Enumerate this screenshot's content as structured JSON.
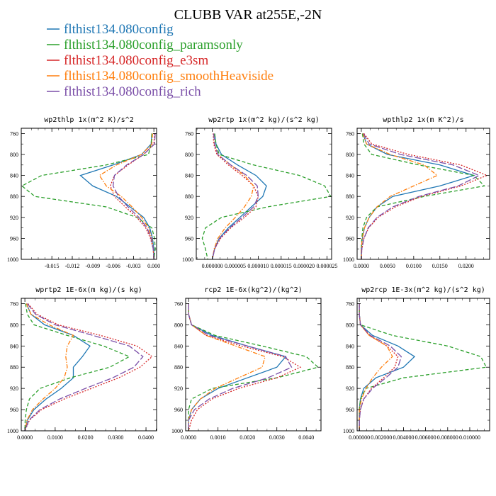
{
  "figure": {
    "title": "CLUBB VAR at255E,-2N",
    "legend": [
      {
        "label": "flthist134.080config",
        "color": "#1f77b4",
        "dash": "solid"
      },
      {
        "label": "flthist134.080config_paramsonly",
        "color": "#2ca02c",
        "dash": "dash"
      },
      {
        "label": "flthist134.080config_e3sm",
        "color": "#d62728",
        "dash": "dot"
      },
      {
        "label": "flthist134.080config_smoothHeaviside",
        "color": "#ff7f0e",
        "dash": "dashdot"
      },
      {
        "label": "flthist134.080config_rich",
        "color": "#7b4fa8",
        "dash": "longdash"
      }
    ]
  },
  "chart_data": [
    {
      "type": "line",
      "title": "wp2thlp  1x(m^2 K)/s^2",
      "y": [
        760,
        780,
        800,
        820,
        840,
        860,
        880,
        900,
        920,
        940,
        960,
        980,
        1000
      ],
      "ylim": [
        750,
        1000
      ],
      "yticks": [
        "760",
        "800",
        "840",
        "880",
        "920",
        "960",
        "1000"
      ],
      "xlim": [
        -0.0195,
        0.0004
      ],
      "xticks": [
        "-0.015",
        "-0.012",
        "-0.009",
        "-0.006",
        "-0.003",
        "0.000"
      ],
      "xtick_values": [
        -0.015,
        -0.012,
        -0.009,
        -0.006,
        -0.003,
        0.0
      ],
      "series": [
        {
          "values": [
            -0.0003,
            -0.0004,
            -0.0018,
            -0.006,
            -0.0108,
            -0.009,
            -0.0055,
            -0.0035,
            -0.0015,
            -0.0006,
            -0.0002,
            0.0,
            0.0
          ]
        },
        {
          "values": [
            -0.0003,
            -0.0004,
            -0.0008,
            -0.007,
            -0.0165,
            -0.0194,
            -0.0175,
            -0.007,
            -0.0025,
            -0.0003,
            0.0001,
            0.0002,
            0.0
          ]
        },
        {
          "values": [
            0.0001,
            0.0,
            -0.0015,
            -0.0038,
            -0.0058,
            -0.0064,
            -0.0058,
            -0.0042,
            -0.0025,
            -0.0012,
            -0.0005,
            -0.0001,
            0.0
          ]
        },
        {
          "values": [
            -0.0002,
            -0.0003,
            -0.0018,
            -0.0055,
            -0.008,
            -0.007,
            -0.0048,
            -0.0032,
            -0.0018,
            -0.0008,
            -0.0003,
            -0.0001,
            0.0
          ]
        },
        {
          "values": [
            0.0002,
            0.0001,
            -0.0015,
            -0.004,
            -0.0058,
            -0.006,
            -0.0052,
            -0.0038,
            -0.0022,
            -0.001,
            -0.0004,
            -0.0001,
            0.0
          ]
        }
      ]
    },
    {
      "type": "line",
      "title": "wp2rtp  1x(m^2 kg)/(s^2 kg)",
      "y": [
        760,
        780,
        800,
        820,
        840,
        860,
        880,
        900,
        920,
        940,
        960,
        980,
        1000
      ],
      "ylim": [
        750,
        1000
      ],
      "yticks": [
        "760",
        "800",
        "840",
        "880",
        "920",
        "960",
        "1000"
      ],
      "xlim": [
        -3.5e-06,
        2.6e-05
      ],
      "xticks": [
        "0.000000",
        "0.000005",
        "0.000010",
        "0.000015",
        "0.000020",
        "0.000025"
      ],
      "xtick_values": [
        0.0,
        5e-06,
        1e-05,
        1.5e-05,
        2e-05,
        2.5e-05
      ],
      "series": [
        {
          "values": [
            5e-07,
            8e-07,
            2e-06,
            5.5e-06,
            9.5e-06,
            1.18e-05,
            1.1e-05,
            8.5e-06,
            6e-06,
            3.5e-06,
            1.5e-06,
            5e-07,
            0.0
          ]
        },
        {
          "values": [
            5e-07,
            8e-07,
            1.5e-06,
            9e-06,
            1.9e-05,
            2.45e-05,
            2.58e-05,
            1.2e-05,
            2e-06,
            -1.5e-06,
            -2.2e-06,
            -1.5e-06,
            -1e-06
          ]
        },
        {
          "values": [
            2e-07,
            3e-07,
            1e-06,
            3.5e-06,
            6.5e-06,
            9e-06,
            1e-05,
            9.5e-06,
            7e-06,
            4e-06,
            1.8e-06,
            5e-07,
            0.0
          ]
        },
        {
          "values": [
            3e-07,
            5e-07,
            1.2e-06,
            4e-06,
            7e-06,
            9e-06,
            8.5e-06,
            7e-06,
            5e-06,
            2.8e-06,
            1.2e-06,
            4e-07,
            0.0
          ]
        },
        {
          "values": [
            3e-07,
            5e-07,
            1.2e-06,
            4e-06,
            7.5e-06,
            9.8e-06,
            1e-05,
            9e-06,
            6.5e-06,
            3.8e-06,
            1.6e-06,
            5e-07,
            0.0
          ]
        }
      ]
    },
    {
      "type": "line",
      "title": "wpthlp2  1x(m K^2)/s",
      "y": [
        760,
        780,
        800,
        820,
        840,
        860,
        880,
        900,
        920,
        940,
        960,
        980,
        1000
      ],
      "ylim": [
        750,
        1000
      ],
      "yticks": [
        "760",
        "800",
        "840",
        "880",
        "920",
        "960",
        "1000"
      ],
      "xlim": [
        -0.0008,
        0.0245
      ],
      "xticks": [
        "0.0000",
        "0.0050",
        "0.0100",
        "0.0150",
        "0.0200"
      ],
      "xtick_values": [
        0.0,
        0.005,
        0.01,
        0.015,
        0.02
      ],
      "series": [
        {
          "values": [
            0.0003,
            0.001,
            0.005,
            0.015,
            0.0215,
            0.015,
            0.006,
            0.003,
            0.0015,
            0.0006,
            0.0002,
            0.0,
            0.0
          ]
        },
        {
          "values": [
            0.0002,
            0.0005,
            0.002,
            0.011,
            0.0215,
            0.0235,
            0.012,
            0.003,
            0.001,
            0.0003,
            0.0001,
            0.0,
            0.0
          ]
        },
        {
          "values": [
            0.0005,
            0.002,
            0.009,
            0.019,
            0.024,
            0.019,
            0.0115,
            0.0065,
            0.0032,
            0.0014,
            0.0005,
            0.0001,
            0.0
          ]
        },
        {
          "values": [
            0.0003,
            0.001,
            0.0055,
            0.012,
            0.0145,
            0.01,
            0.0055,
            0.003,
            0.0015,
            0.0006,
            0.0002,
            0.0,
            0.0
          ]
        },
        {
          "values": [
            0.0004,
            0.0015,
            0.0075,
            0.0175,
            0.0225,
            0.0185,
            0.011,
            0.006,
            0.003,
            0.0013,
            0.0005,
            0.0001,
            0.0
          ]
        }
      ]
    },
    {
      "type": "line",
      "title": "wprtp2  1E-6x(m kg)/(s kg)",
      "y": [
        760,
        780,
        800,
        820,
        840,
        860,
        880,
        900,
        920,
        940,
        960,
        980,
        1000
      ],
      "ylim": [
        750,
        1000
      ],
      "yticks": [
        "760",
        "800",
        "840",
        "880",
        "920",
        "960",
        "1000"
      ],
      "xlim": [
        -0.0012,
        0.0435
      ],
      "xticks": [
        "0.0000",
        "0.0100",
        "0.0200",
        "0.0300",
        "0.0400"
      ],
      "xtick_values": [
        0.0,
        0.01,
        0.02,
        0.03,
        0.04
      ],
      "series": [
        {
          "values": [
            0.0005,
            0.002,
            0.0065,
            0.016,
            0.0215,
            0.019,
            0.016,
            0.016,
            0.012,
            0.007,
            0.003,
            0.0008,
            0.0
          ]
        },
        {
          "values": [
            0.0002,
            0.0008,
            0.003,
            0.014,
            0.026,
            0.0345,
            0.028,
            0.015,
            0.005,
            0.0015,
            0.0005,
            0.0001,
            0.0
          ]
        },
        {
          "values": [
            0.001,
            0.004,
            0.011,
            0.025,
            0.037,
            0.042,
            0.038,
            0.031,
            0.022,
            0.013,
            0.0055,
            0.0015,
            0.0
          ]
        },
        {
          "values": [
            0.0005,
            0.002,
            0.008,
            0.016,
            0.014,
            0.0135,
            0.014,
            0.013,
            0.01,
            0.006,
            0.0025,
            0.0007,
            0.0
          ]
        },
        {
          "values": [
            0.0008,
            0.0035,
            0.01,
            0.0225,
            0.0345,
            0.039,
            0.036,
            0.029,
            0.02,
            0.0115,
            0.005,
            0.0013,
            0.0
          ]
        }
      ]
    },
    {
      "type": "line",
      "title": "rcp2  1E-6x(kg^2)/(kg^2)",
      "y": [
        760,
        780,
        800,
        820,
        840,
        860,
        880,
        900,
        920,
        940,
        960,
        980,
        1000
      ],
      "ylim": [
        750,
        1000
      ],
      "yticks": [
        "760",
        "800",
        "840",
        "880",
        "920",
        "960",
        "1000"
      ],
      "xlim": [
        -0.0001,
        0.0045
      ],
      "xticks": [
        "0.0000",
        "0.0010",
        "0.0020",
        "0.0030",
        "0.0040"
      ],
      "xtick_values": [
        0.0,
        0.001,
        0.002,
        0.003,
        0.004
      ],
      "series": [
        {
          "values": [
            0.0,
            0.0,
            0.0001,
            0.0008,
            0.002,
            0.0033,
            0.003,
            0.002,
            0.001,
            0.0004,
            0.0001,
            0.0,
            0.0
          ]
        },
        {
          "values": [
            0.0,
            0.0,
            0.0001,
            0.0009,
            0.0025,
            0.004,
            0.0044,
            0.003,
            0.0008,
            0.0001,
            0.0,
            0.0,
            0.0
          ]
        },
        {
          "values": [
            0.0,
            0.0,
            0.0001,
            0.0006,
            0.0018,
            0.0032,
            0.0038,
            0.003,
            0.0017,
            0.0008,
            0.0003,
            0.0001,
            0.0
          ]
        },
        {
          "values": [
            0.0,
            0.0,
            0.0001,
            0.0006,
            0.0016,
            0.0026,
            0.0025,
            0.0017,
            0.0009,
            0.0004,
            0.0001,
            0.0,
            0.0
          ]
        },
        {
          "values": [
            0.0,
            0.0,
            0.0001,
            0.0007,
            0.002,
            0.0033,
            0.0035,
            0.0027,
            0.0015,
            0.0007,
            0.0002,
            0.0,
            0.0
          ]
        }
      ]
    },
    {
      "type": "line",
      "title": "wp2rcp  1E-3x(m^2 kg)/(s^2 kg)",
      "y": [
        760,
        780,
        800,
        820,
        840,
        860,
        880,
        900,
        920,
        940,
        960,
        980,
        1000
      ],
      "ylim": [
        750,
        1000
      ],
      "yticks": [
        "760",
        "800",
        "840",
        "880",
        "920",
        "960",
        "1000"
      ],
      "xlim": [
        -0.0002,
        0.0118
      ],
      "xticks": [
        "0.000000",
        "0.002000",
        "0.004000",
        "0.006000",
        "0.008000",
        "0.010000"
      ],
      "xtick_values": [
        0.0,
        0.002,
        0.004,
        0.006,
        0.008,
        0.01
      ],
      "series": [
        {
          "values": [
            0.0,
            0.0,
            0.0001,
            0.0012,
            0.0035,
            0.005,
            0.004,
            0.0015,
            0.0004,
            0.0001,
            0.0,
            0.0,
            0.0
          ]
        },
        {
          "values": [
            0.0,
            0.0,
            0.0001,
            0.003,
            0.008,
            0.011,
            0.0115,
            0.004,
            0.0006,
            0.0001,
            0.0,
            0.0,
            0.0
          ]
        },
        {
          "values": [
            0.0,
            0.0,
            0.0001,
            0.0009,
            0.0025,
            0.0035,
            0.0032,
            0.0022,
            0.0011,
            0.0004,
            0.0001,
            0.0,
            0.0
          ]
        },
        {
          "values": [
            0.0,
            0.0,
            0.0001,
            0.0009,
            0.0025,
            0.003,
            0.002,
            0.0012,
            0.0006,
            0.0002,
            0.0,
            0.0,
            0.0
          ]
        },
        {
          "values": [
            0.0,
            0.0,
            0.0001,
            0.001,
            0.0028,
            0.0038,
            0.0035,
            0.0024,
            0.0012,
            0.0004,
            0.0001,
            0.0,
            0.0
          ]
        }
      ]
    }
  ]
}
